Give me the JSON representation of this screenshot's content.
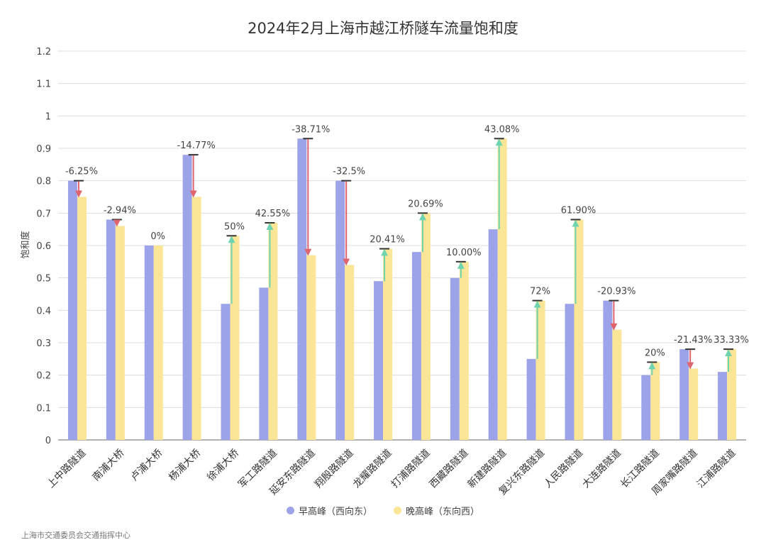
{
  "chart_data": {
    "type": "bar",
    "title": "2024年2月上海市越江桥隧车流量饱和度",
    "ylabel": "饱和度",
    "xlabel": "",
    "ylim": [
      0,
      1.2
    ],
    "yticks": [
      "0",
      "0.1",
      "0.2",
      "0.3",
      "0.4",
      "0.5",
      "0.6",
      "0.7",
      "0.8",
      "0.9",
      "1",
      "1.1",
      "1.2"
    ],
    "ytick_values": [
      0,
      0.1,
      0.2,
      0.3,
      0.4,
      0.5,
      0.6,
      0.7,
      0.8,
      0.9,
      1.0,
      1.1,
      1.2
    ],
    "grid": true,
    "legend_position": "bottom",
    "categories": [
      "上中路隧道",
      "南浦大桥",
      "卢浦大桥",
      "杨浦大桥",
      "徐浦大桥",
      "军工路隧道",
      "延安东路隧道",
      "翔殷路隧道",
      "龙耀路隧道",
      "打浦路隧道",
      "西藏路隧道",
      "新建路隧道",
      "复兴东路隧道",
      "人民路隧道",
      "大连路隧道",
      "长江路隧道",
      "周家嘴路隧道",
      "江浦路隧道"
    ],
    "series": [
      {
        "name": "早高峰（西向东）",
        "color": "#9da3e8",
        "values": [
          0.8,
          0.68,
          0.6,
          0.88,
          0.42,
          0.47,
          0.93,
          0.8,
          0.49,
          0.58,
          0.5,
          0.65,
          0.25,
          0.42,
          0.43,
          0.2,
          0.28,
          0.21
        ]
      },
      {
        "name": "晚高峰（东向西）",
        "color": "#fbe597",
        "values": [
          0.75,
          0.66,
          0.6,
          0.75,
          0.63,
          0.67,
          0.57,
          0.54,
          0.59,
          0.7,
          0.55,
          0.93,
          0.43,
          0.68,
          0.34,
          0.24,
          0.22,
          0.28
        ]
      }
    ],
    "change_labels": [
      "-6.25%",
      "-2.94%",
      "0%",
      "-14.77%",
      "50%",
      "42.55%",
      "-38.71%",
      "-32.5%",
      "20.41%",
      "20.69%",
      "10.00%",
      "43.08%",
      "72%",
      "61.90%",
      "-20.93%",
      "20%",
      "-21.43%",
      "33.33%"
    ],
    "arrow_colors": {
      "up": "#6ed3b0",
      "down": "#e0646e"
    }
  },
  "source_note": "上海市交通委员会交通指挥中心"
}
